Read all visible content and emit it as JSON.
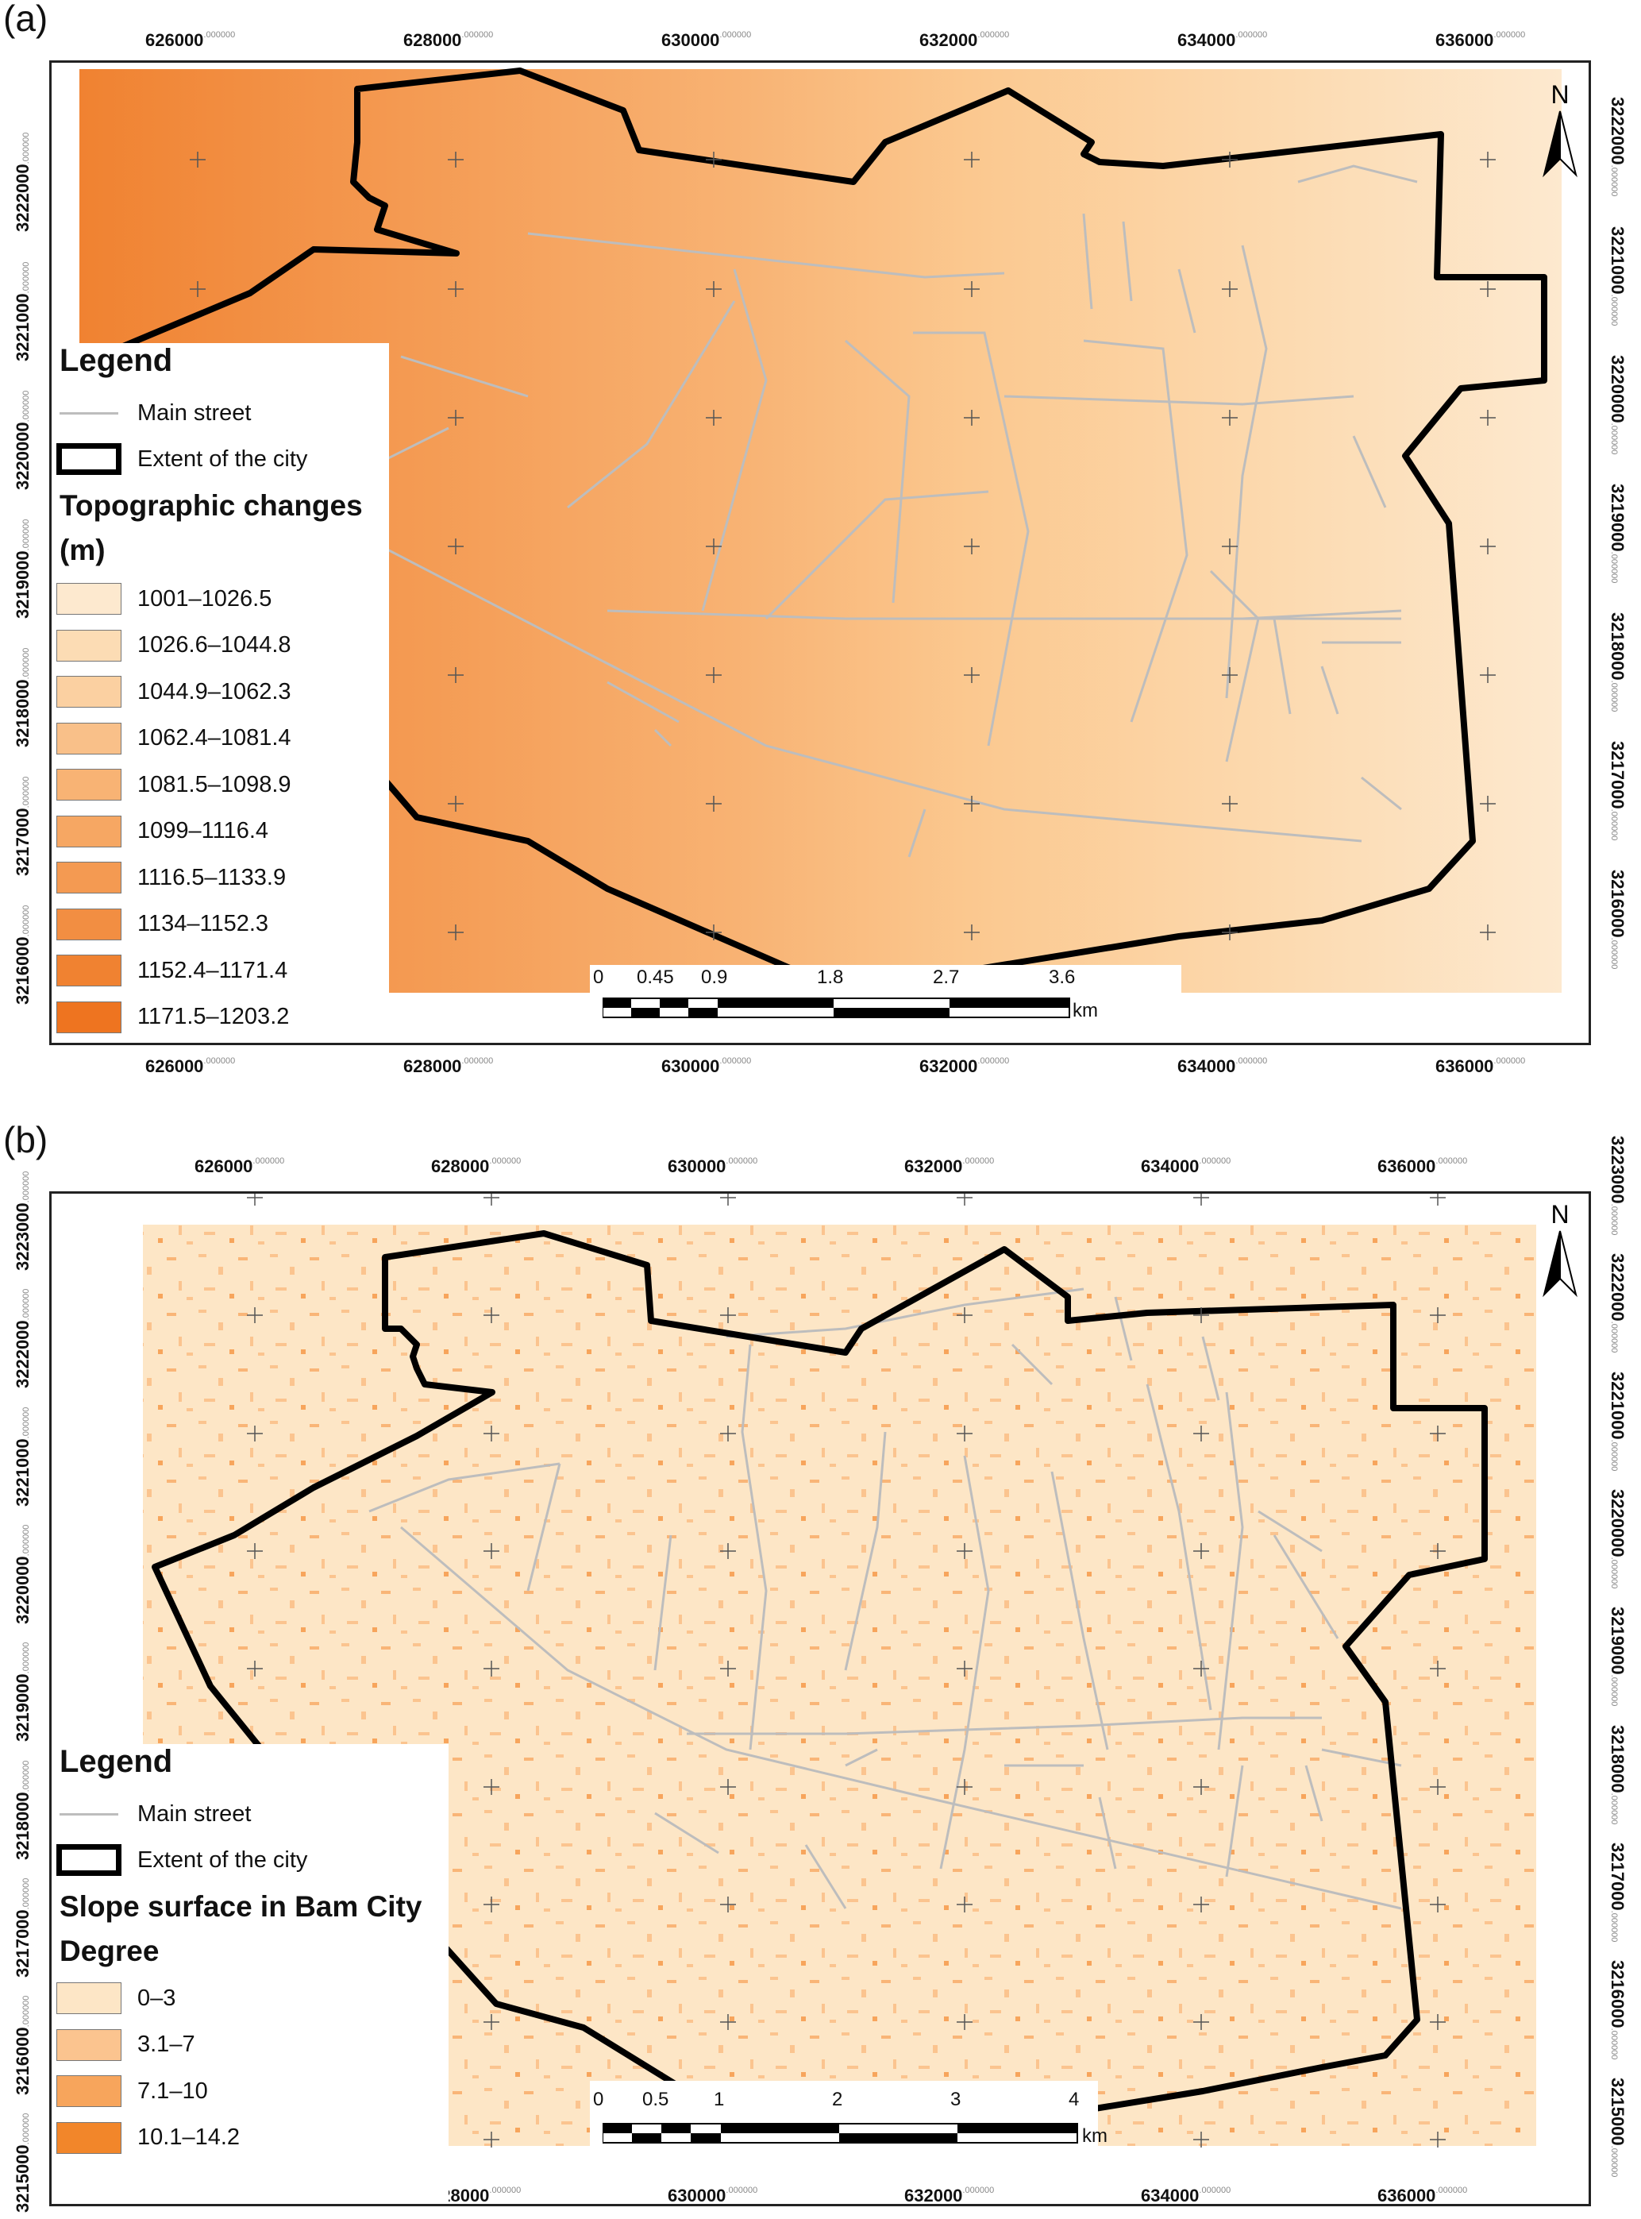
{
  "panel_a": {
    "label": "(a)",
    "x_ticks": [
      "626000",
      "628000",
      "630000",
      "632000",
      "634000",
      "636000"
    ],
    "y_ticks": [
      "3222000",
      "3221000",
      "3220000",
      "3219000",
      "3218000",
      "3217000",
      "3216000"
    ],
    "tick_suffix": ".000000",
    "north_label": "N",
    "legend": {
      "title": "Legend",
      "street_label": "Main street",
      "extent_label": "Extent of the city",
      "class_title": "Topographic changes",
      "class_unit": "(m)",
      "classes": [
        {
          "label": "1001–1026.5",
          "color": "#fde9cf"
        },
        {
          "label": "1026.6–1044.8",
          "color": "#fcdcb4"
        },
        {
          "label": "1044.9–1062.3",
          "color": "#fbd0a1"
        },
        {
          "label": "1062.4–1081.4",
          "color": "#f9c089"
        },
        {
          "label": "1081.5–1098.9",
          "color": "#f8b374"
        },
        {
          "label": "1099–1116.4",
          "color": "#f6a763"
        },
        {
          "label": "1116.5–1133.9",
          "color": "#f49a52"
        },
        {
          "label": "1134–1152.3",
          "color": "#f28e42"
        },
        {
          "label": "1152.4–1171.4",
          "color": "#f08231"
        },
        {
          "label": "1171.5–1203.2",
          "color": "#ee7420"
        }
      ]
    },
    "scale": {
      "ticks": [
        "0",
        "0.45",
        "0.9",
        "1.8",
        "2.7",
        "3.6"
      ],
      "unit": "km"
    }
  },
  "panel_b": {
    "label": "(b)",
    "x_ticks": [
      "626000",
      "628000",
      "630000",
      "632000",
      "634000",
      "636000"
    ],
    "y_ticks": [
      "3223000",
      "3222000",
      "3221000",
      "3220000",
      "3219000",
      "3218000",
      "3217000",
      "3216000",
      "3215000"
    ],
    "tick_suffix": ".000000",
    "north_label": "N",
    "legend": {
      "title": "Legend",
      "street_label": "Main street",
      "extent_label": "Extent of the city",
      "class_title": "Slope surface in Bam City",
      "class_unit": "Degree",
      "classes": [
        {
          "label": "0–3",
          "color": "#fde6c6"
        },
        {
          "label": "3.1–7",
          "color": "#fbc48f"
        },
        {
          "label": "7.1–10",
          "color": "#f7a55c"
        },
        {
          "label": "10.1–14.2",
          "color": "#f2862a"
        }
      ]
    },
    "scale": {
      "ticks": [
        "0",
        "0.5",
        "1",
        "2",
        "3",
        "4"
      ],
      "unit": "km"
    }
  }
}
